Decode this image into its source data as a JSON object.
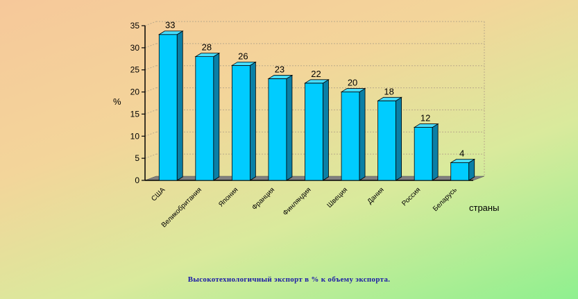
{
  "chart_data": {
    "type": "bar",
    "categories": [
      "США",
      "Великобритания",
      "Япония",
      "Франция",
      "Финляндия",
      "Швеция",
      "Дания",
      "Россия",
      "Беларусь"
    ],
    "values": [
      33,
      28,
      26,
      23,
      22,
      20,
      18,
      12,
      4
    ],
    "ylabel": "%",
    "xlabel": "страны",
    "ylim": [
      0,
      35
    ],
    "yticks": [
      "0",
      "5",
      "10",
      "15",
      "20",
      "25",
      "30",
      "35"
    ],
    "grid": true,
    "bar_style": "3d",
    "colors": {
      "bar_front": "#00ccff",
      "bar_side": "#0a7fa6",
      "bar_top": "#46dcff",
      "floor": "#808080"
    }
  },
  "caption": "Высокотехнологичный экспорт в % к объему экспорта."
}
